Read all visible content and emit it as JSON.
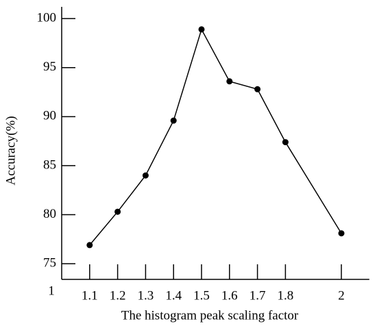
{
  "chart_data": {
    "type": "line",
    "x_label": "The histogram peak scaling factor",
    "y_label": "Accuracy(%)",
    "series": [
      {
        "name": "Accuracy",
        "color": "#000000",
        "x": [
          1.1,
          1.2,
          1.3,
          1.4,
          1.5,
          1.6,
          1.7,
          1.8,
          2
        ],
        "values": [
          76.9,
          80.3,
          84,
          89.6,
          98.9,
          93.6,
          92.8,
          87.4,
          78.1
        ]
      }
    ],
    "xlim": [
      1,
      2.1
    ],
    "ylim": [
      73.4,
      101.2
    ],
    "xticks": [
      1,
      1.1,
      1.2,
      1.3,
      1.4,
      1.5,
      1.6,
      1.7,
      1.8,
      2
    ],
    "yticks": [
      75,
      80,
      85,
      90,
      95,
      100
    ]
  }
}
